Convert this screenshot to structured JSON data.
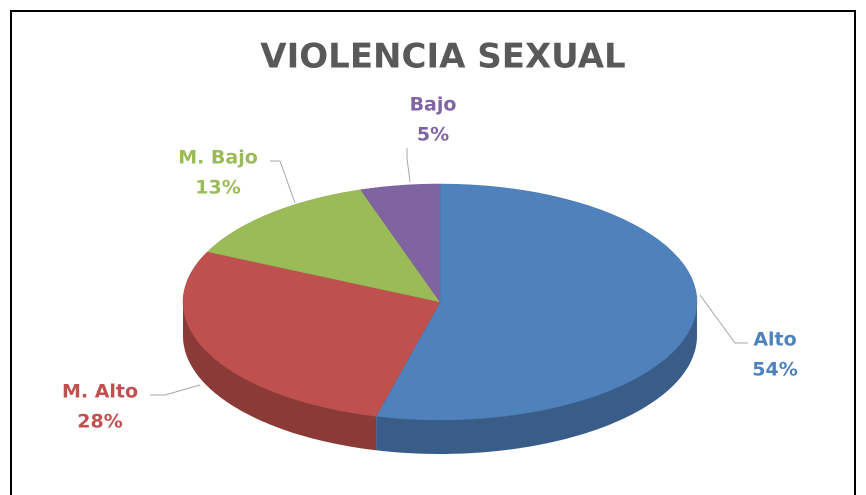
{
  "chart_data": {
    "type": "pie",
    "title": "VIOLENCIA SEXUAL",
    "categories": [
      "Alto",
      "M. Alto",
      "M. Bajo",
      "Bajo"
    ],
    "values": [
      54,
      28,
      13,
      5
    ],
    "value_labels": [
      "54%",
      "28%",
      "13%",
      "5%"
    ],
    "colors": [
      "#4f81bd",
      "#c0504d",
      "#9bbb59",
      "#8064a2"
    ]
  }
}
